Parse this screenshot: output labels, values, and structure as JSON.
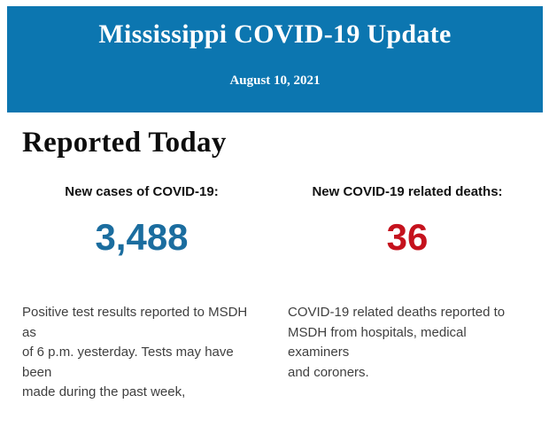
{
  "header": {
    "title": "Mississippi COVID-19 Update",
    "date": "August 10, 2021",
    "background_color": "#0c76b0",
    "text_color": "#ffffff"
  },
  "main": {
    "section_title": "Reported Today",
    "stats": {
      "cases": {
        "label": "New cases of COVID-19:",
        "value": "3,488",
        "value_color": "#1b6d9f",
        "description": "Positive test results reported to MSDH as\nof 6 p.m. yesterday. Tests may have been\nmade during the past week,"
      },
      "deaths": {
        "label": "New COVID-19 related deaths:",
        "value": "36",
        "value_color": "#c5121d",
        "description": "COVID-19 related deaths reported to\nMSDH from hospitals, medical examiners\nand coroners."
      }
    }
  }
}
